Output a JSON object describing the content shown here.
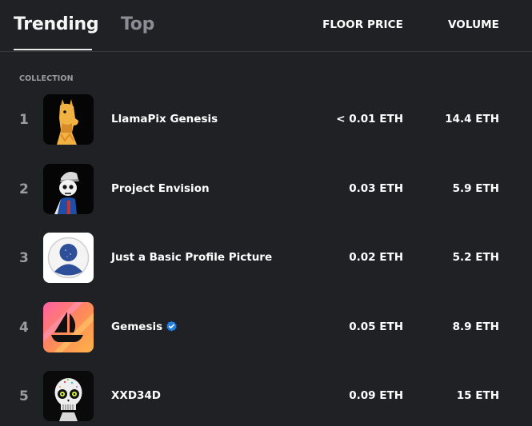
{
  "tabs": {
    "trending": "Trending",
    "top": "Top"
  },
  "headers": {
    "collection": "COLLECTION",
    "floor": "FLOOR PRICE",
    "volume": "VOLUME"
  },
  "rows": [
    {
      "rank": "1",
      "name": "LlamaPix Genesis",
      "floor": "< 0.01 ETH",
      "volume": "14.4 ETH",
      "thumb": "llama-image",
      "verified": false
    },
    {
      "rank": "2",
      "name": "Project Envision",
      "floor": "0.03 ETH",
      "volume": "5.9 ETH",
      "thumb": "skull-character-image",
      "verified": false
    },
    {
      "rank": "3",
      "name": "Just a Basic Profile Picture",
      "floor": "0.02 ETH",
      "volume": "5.2 ETH",
      "thumb": "default-avatar-image",
      "verified": false
    },
    {
      "rank": "4",
      "name": "Gemesis",
      "floor": "0.05 ETH",
      "volume": "8.9 ETH",
      "thumb": "opensea-ship-image",
      "verified": true
    },
    {
      "rank": "5",
      "name": "XXD34D",
      "floor": "0.09 ETH",
      "volume": "15 ETH",
      "thumb": "sugar-skull-image",
      "verified": false
    }
  ],
  "colors": {
    "background": "#202124",
    "muted": "#9a9ca1",
    "verified": "#2081e2"
  }
}
